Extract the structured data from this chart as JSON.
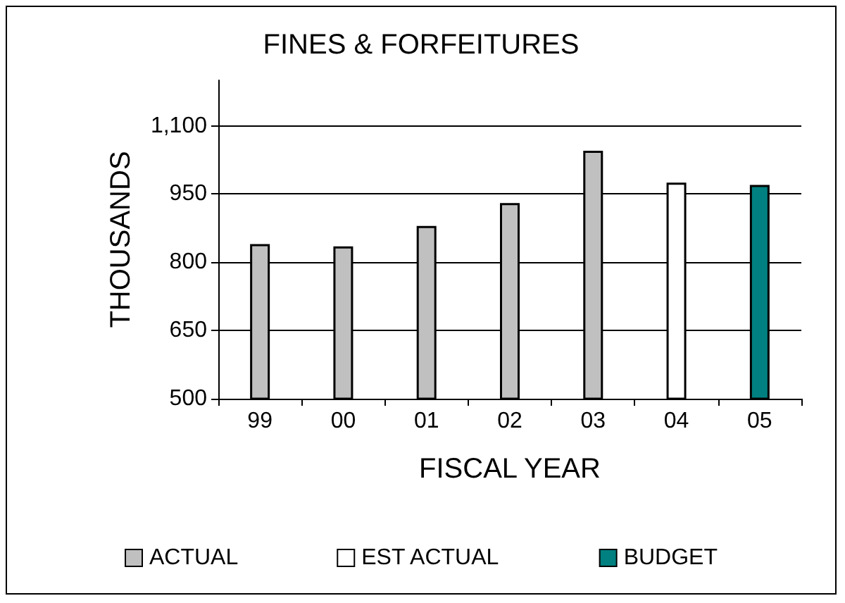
{
  "chart_data": {
    "type": "bar",
    "title": "FINES & FORFEITURES",
    "xlabel": "FISCAL YEAR",
    "ylabel": "THOUSANDS",
    "categories": [
      "99",
      "00",
      "01",
      "02",
      "03",
      "04",
      "05"
    ],
    "series": [
      {
        "name": "ACTUAL",
        "color": "#c0c0c0",
        "values": [
          840,
          835,
          880,
          930,
          1045,
          null,
          null
        ]
      },
      {
        "name": "EST ACTUAL",
        "color": "#ffffff",
        "values": [
          null,
          null,
          null,
          null,
          null,
          975,
          null
        ]
      },
      {
        "name": "BUDGET",
        "color": "#008080",
        "values": [
          null,
          null,
          null,
          null,
          null,
          null,
          970
        ]
      }
    ],
    "ylim": [
      500,
      1200
    ],
    "yticks": [
      500,
      650,
      800,
      950,
      {
        "value": 1100,
        "label": "1,100"
      }
    ],
    "grid": "y",
    "legend": "bottom"
  }
}
